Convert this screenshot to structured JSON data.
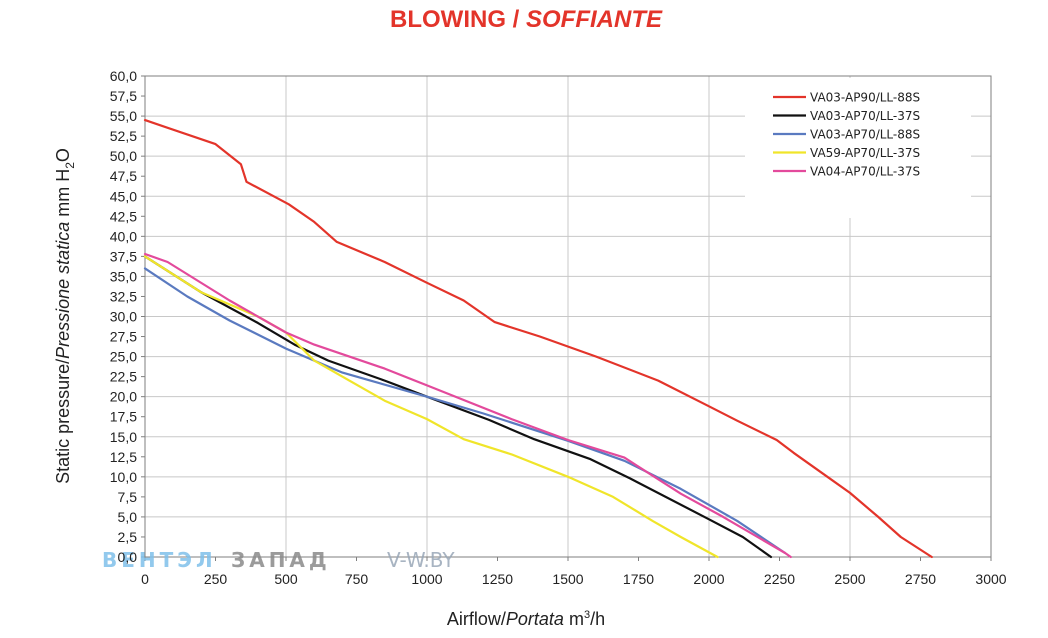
{
  "chart_data": {
    "type": "line",
    "title_main": "BLOWING",
    "title_sep": " / ",
    "title_italic": "SOFFIANTE",
    "xlabel_main": "Airflow",
    "xlabel_sep": "/",
    "xlabel_italic": "Portata",
    "xlabel_unit_pre": "m",
    "xlabel_unit_sup": "3",
    "xlabel_unit_post": "/h",
    "ylabel_main": "Static pressure/",
    "ylabel_italic": "Pressione statica",
    "ylabel_unit_pre": "mm  H",
    "ylabel_unit_sub": "2",
    "ylabel_unit_post": "O",
    "xlim": [
      0,
      3000
    ],
    "ylim": [
      0,
      60
    ],
    "x_ticks": [
      0,
      250,
      500,
      750,
      1000,
      1250,
      1500,
      1750,
      2000,
      2250,
      2500,
      2750,
      3000
    ],
    "x_tick_labels": [
      "0",
      "250",
      "500",
      "750",
      "1000",
      "1250",
      "1500",
      "1750",
      "2000",
      "2250",
      "2500",
      "2750",
      "3000"
    ],
    "y_ticks": [
      0,
      2.5,
      5,
      7.5,
      10,
      12.5,
      15,
      17.5,
      20,
      22.5,
      25,
      27.5,
      30,
      32.5,
      35,
      37.5,
      40,
      42.5,
      45,
      47.5,
      50,
      52.5,
      55,
      57.5,
      60
    ],
    "y_tick_labels": [
      "0,0",
      "2,5",
      "5,0",
      "7,5",
      "10,0",
      "12,5",
      "15,0",
      "17,5",
      "20,0",
      "22,5",
      "25,0",
      "27,5",
      "30,0",
      "32,5",
      "35,0",
      "37,5",
      "40,0",
      "42,5",
      "45,0",
      "47,5",
      "50,0",
      "52,5",
      "55,0",
      "57,5",
      "60,0"
    ],
    "grid": true,
    "legend_position": "top-right",
    "series": [
      {
        "name": "VA03-AP90/LL-88S",
        "color": "#e3342a",
        "x": [
          0,
          250,
          340,
          360,
          510,
          600,
          680,
          850,
          1000,
          1130,
          1240,
          1400,
          1600,
          1820,
          2000,
          2100,
          2240,
          2300,
          2420,
          2500,
          2600,
          2680,
          2790
        ],
        "y": [
          54.5,
          51.5,
          49,
          46.8,
          44,
          41.8,
          39.3,
          36.8,
          34.2,
          32,
          29.3,
          27.5,
          25,
          22,
          18.8,
          17,
          14.6,
          13,
          10,
          8,
          5,
          2.5,
          0
        ]
      },
      {
        "name": "VA03-AP70/LL-37S",
        "color": "#111111",
        "x": [
          0,
          200,
          400,
          530,
          650,
          850,
          1000,
          1220,
          1380,
          1580,
          1720,
          2000,
          2120,
          2220
        ],
        "y": [
          37.5,
          33,
          29.2,
          26.5,
          24.5,
          22,
          20,
          17.1,
          14.7,
          12.2,
          9.8,
          4.7,
          2.5,
          0
        ]
      },
      {
        "name": "VA03-AP70/LL-88S",
        "color": "#5a7ac0",
        "x": [
          0,
          150,
          300,
          500,
          700,
          1000,
          1200,
          1500,
          1700,
          1900,
          2100,
          2270
        ],
        "y": [
          36,
          32.5,
          29.5,
          26,
          23,
          20,
          17.9,
          14.5,
          12,
          8.5,
          4.5,
          0.5
        ]
      },
      {
        "name": "VA59-AP70/LL-37S",
        "color": "#f0e52a",
        "x": [
          0,
          200,
          400,
          500,
          600,
          850,
          1000,
          1130,
          1300,
          1500,
          1660,
          1800,
          1900,
          2030
        ],
        "y": [
          37.5,
          33,
          30,
          28,
          24.5,
          19.5,
          17.2,
          14.7,
          12.8,
          10,
          7.5,
          4.5,
          2.5,
          0
        ]
      },
      {
        "name": "VA04-AP70/LL-37S",
        "color": "#e34a9c",
        "x": [
          0,
          80,
          300,
          500,
          600,
          850,
          1000,
          1300,
          1500,
          1700,
          1900,
          2050,
          2270,
          2290
        ],
        "y": [
          37.8,
          36.8,
          32,
          28,
          26.5,
          23.5,
          21.4,
          17.2,
          14.6,
          12.4,
          7.9,
          5,
          0.5,
          0
        ]
      }
    ]
  },
  "watermark": {
    "part1": "ВЕНТЭЛ",
    "part2": "ЗАПАД",
    "part3": "V-W.BY"
  }
}
